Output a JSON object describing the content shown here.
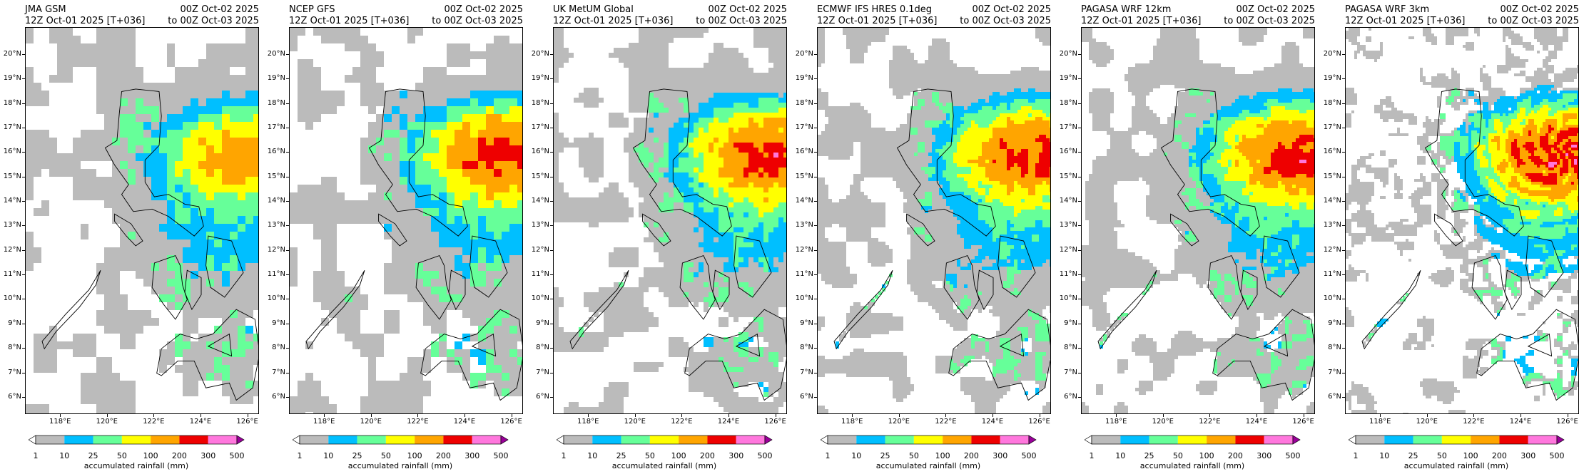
{
  "panels": [
    {
      "model": "JMA GSM",
      "init": "12Z Oct-01 2025 [T+036]",
      "valid_from": "00Z Oct-02 2025",
      "valid_to": "to 00Z Oct-03 2025",
      "style": "coarse",
      "max_level": 4
    },
    {
      "model": "NCEP GFS",
      "init": "12Z Oct-01 2025 [T+036]",
      "valid_from": "00Z Oct-02 2025",
      "valid_to": "to 00Z Oct-03 2025",
      "style": "coarse",
      "max_level": 5
    },
    {
      "model": "UK MetUM Global",
      "init": "12Z Oct-01 2025 [T+036]",
      "valid_from": "00Z Oct-02 2025",
      "valid_to": "to 00Z Oct-03 2025",
      "style": "medium",
      "max_level": 5
    },
    {
      "model": "ECMWF IFS HRES 0.1deg",
      "init": "12Z Oct-01 2025 [T+036]",
      "valid_from": "00Z Oct-02 2025",
      "valid_to": "to 00Z Oct-03 2025",
      "style": "fine",
      "max_level": 5
    },
    {
      "model": "PAGASA WRF 12km",
      "init": "12Z Oct-01 2025 [T+036]",
      "valid_from": "00Z Oct-02 2025",
      "valid_to": "to 00Z Oct-03 2025",
      "style": "fine",
      "max_level": 5
    },
    {
      "model": "PAGASA WRF 3km",
      "init": "12Z Oct-01 2025 [T+036]",
      "valid_from": "00Z Oct-02 2025",
      "valid_to": "to 00Z Oct-03 2025",
      "style": "swirl",
      "max_level": 5
    }
  ],
  "chart_data": {
    "type": "heatmap",
    "title": "",
    "colorbar_label": "accumulated rainfall (mm)",
    "levels": [
      1,
      10,
      25,
      50,
      100,
      200,
      300,
      500
    ],
    "level_labels": [
      "1",
      "10",
      "25",
      "50",
      "100",
      "200",
      "300",
      "500"
    ],
    "colors": [
      "#bbbbbb",
      "#00bfff",
      "#66ff99",
      "#ffff00",
      "#ffa500",
      "#ee0000",
      "#ff77dd"
    ],
    "under_color": "#ffffff",
    "over_color": "#990099",
    "lat_ticks": [
      "6°N",
      "7°N",
      "8°N",
      "9°N",
      "10°N",
      "11°N",
      "12°N",
      "13°N",
      "14°N",
      "15°N",
      "16°N",
      "17°N",
      "18°N",
      "19°N",
      "20°N"
    ],
    "lon_ticks": [
      "118°E",
      "120°E",
      "122°E",
      "124°E",
      "126°E"
    ],
    "lat_range": [
      5.3,
      21.1
    ],
    "lon_range": [
      116.5,
      126.5
    ]
  }
}
